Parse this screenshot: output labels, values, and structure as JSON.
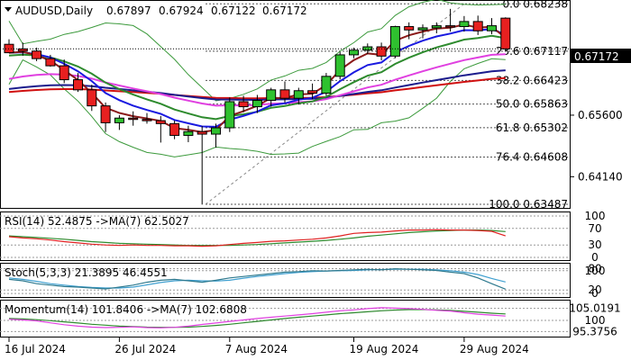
{
  "chart_data": {
    "type": "candlestick",
    "title": "AUDUSD,Daily",
    "ohlc_header": [
      "0.67897",
      "0.67924",
      "0.67122",
      "0.67172"
    ],
    "current_price": "0.67172",
    "colors": {
      "bull": "#2fc12f",
      "bear": "#e82020",
      "ema_fast": "#1a1ae0",
      "ema_mid": "#8b1a1a",
      "ema_green": "#2e8b2e",
      "magenta": "#e040e0",
      "navy": "#1c1c8c",
      "red_ma": "#d01010",
      "bands": "#3c9a3c"
    },
    "y_axis": {
      "range": [
        0.6338,
        0.6833
      ],
      "tick_labels": [
        "0.65600",
        "0.64140"
      ],
      "tick_values": [
        0.656,
        0.6414
      ]
    },
    "x_axis": {
      "labels": [
        "16 Jul 2024",
        "26 Jul 2024",
        "7 Aug 2024",
        "19 Aug 2024",
        "29 Aug 2024"
      ],
      "label_indices": [
        0,
        8,
        16,
        25,
        33
      ]
    },
    "fibonacci": [
      {
        "level": "0.0",
        "price": "0.68238",
        "value": 0.68238
      },
      {
        "level": "23.6",
        "price": "0.67117",
        "value": 0.67117
      },
      {
        "level": "38.2",
        "price": "0.66423",
        "value": 0.66423
      },
      {
        "level": "50.0",
        "price": "0.65863",
        "value": 0.65863
      },
      {
        "level": "61.8",
        "price": "0.65302",
        "value": 0.65302
      },
      {
        "level": "76.4",
        "price": "0.64608",
        "value": 0.64608
      },
      {
        "level": "100.0",
        "price": "0.63487",
        "value": 0.63487
      }
    ],
    "candles": [
      {
        "o": 0.6728,
        "h": 0.674,
        "l": 0.6711,
        "c": 0.6708
      },
      {
        "o": 0.6717,
        "h": 0.6732,
        "l": 0.6701,
        "c": 0.6712
      },
      {
        "o": 0.6712,
        "h": 0.672,
        "l": 0.6688,
        "c": 0.6694
      },
      {
        "o": 0.6694,
        "h": 0.6703,
        "l": 0.6675,
        "c": 0.6677
      },
      {
        "o": 0.6677,
        "h": 0.6692,
        "l": 0.6636,
        "c": 0.6644
      },
      {
        "o": 0.6644,
        "h": 0.666,
        "l": 0.6615,
        "c": 0.662
      },
      {
        "o": 0.662,
        "h": 0.6632,
        "l": 0.657,
        "c": 0.6582
      },
      {
        "o": 0.6582,
        "h": 0.659,
        "l": 0.652,
        "c": 0.6542
      },
      {
        "o": 0.6542,
        "h": 0.656,
        "l": 0.6525,
        "c": 0.6553
      },
      {
        "o": 0.6553,
        "h": 0.6569,
        "l": 0.6535,
        "c": 0.655
      },
      {
        "o": 0.655,
        "h": 0.6565,
        "l": 0.654,
        "c": 0.6547
      },
      {
        "o": 0.6547,
        "h": 0.6558,
        "l": 0.6495,
        "c": 0.654
      },
      {
        "o": 0.654,
        "h": 0.6547,
        "l": 0.6503,
        "c": 0.6512
      },
      {
        "o": 0.6512,
        "h": 0.6535,
        "l": 0.6496,
        "c": 0.6521
      },
      {
        "o": 0.6521,
        "h": 0.6534,
        "l": 0.6348,
        "c": 0.6515
      },
      {
        "o": 0.6515,
        "h": 0.654,
        "l": 0.6483,
        "c": 0.653
      },
      {
        "o": 0.653,
        "h": 0.6602,
        "l": 0.652,
        "c": 0.6592
      },
      {
        "o": 0.6592,
        "h": 0.6606,
        "l": 0.6567,
        "c": 0.658
      },
      {
        "o": 0.658,
        "h": 0.6608,
        "l": 0.6565,
        "c": 0.6595
      },
      {
        "o": 0.6595,
        "h": 0.6625,
        "l": 0.658,
        "c": 0.662
      },
      {
        "o": 0.662,
        "h": 0.664,
        "l": 0.659,
        "c": 0.66
      },
      {
        "o": 0.66,
        "h": 0.6625,
        "l": 0.6585,
        "c": 0.6618
      },
      {
        "o": 0.6618,
        "h": 0.6635,
        "l": 0.6598,
        "c": 0.6612
      },
      {
        "o": 0.6612,
        "h": 0.666,
        "l": 0.6606,
        "c": 0.6652
      },
      {
        "o": 0.6652,
        "h": 0.671,
        "l": 0.6645,
        "c": 0.6703
      },
      {
        "o": 0.6703,
        "h": 0.672,
        "l": 0.6695,
        "c": 0.6714
      },
      {
        "o": 0.6714,
        "h": 0.673,
        "l": 0.6705,
        "c": 0.6722
      },
      {
        "o": 0.6722,
        "h": 0.6732,
        "l": 0.669,
        "c": 0.67
      },
      {
        "o": 0.67,
        "h": 0.6772,
        "l": 0.6695,
        "c": 0.677
      },
      {
        "o": 0.677,
        "h": 0.678,
        "l": 0.674,
        "c": 0.6762
      },
      {
        "o": 0.6762,
        "h": 0.6775,
        "l": 0.6742,
        "c": 0.6767
      },
      {
        "o": 0.6767,
        "h": 0.678,
        "l": 0.6754,
        "c": 0.6772
      },
      {
        "o": 0.6772,
        "h": 0.6812,
        "l": 0.6758,
        "c": 0.677
      },
      {
        "o": 0.677,
        "h": 0.6795,
        "l": 0.6758,
        "c": 0.6782
      },
      {
        "o": 0.6782,
        "h": 0.6796,
        "l": 0.675,
        "c": 0.676
      },
      {
        "o": 0.676,
        "h": 0.679,
        "l": 0.6752,
        "c": 0.6772
      },
      {
        "o": 0.679,
        "h": 0.6792,
        "l": 0.6712,
        "c": 0.6717
      }
    ],
    "panels": {
      "rsi": {
        "label": "RSI(14) 52.4875  ->MA(7) 62.5027",
        "range": [
          0,
          100
        ],
        "levels": [
          "100",
          "70",
          "30",
          "0"
        ],
        "values": [
          50,
          47,
          45,
          42,
          38,
          35,
          32,
          30,
          29,
          30,
          29,
          29,
          28,
          28,
          27,
          28,
          31,
          34,
          36,
          39,
          40,
          42,
          44,
          47,
          52,
          58,
          60,
          61,
          64,
          66,
          66,
          67,
          66,
          66,
          65,
          63,
          52
        ],
        "ma": [
          52,
          50,
          48,
          46,
          44,
          41,
          38,
          36,
          34,
          33,
          32,
          31,
          30,
          29,
          29,
          29,
          29,
          30,
          31,
          33,
          35,
          37,
          39,
          41,
          44,
          47,
          51,
          54,
          57,
          60,
          62,
          64,
          65,
          66,
          66,
          65,
          62.5
        ]
      },
      "stoch": {
        "label": "Stoch(5,3,3) 21.3895 46.4551",
        "range": [
          0,
          100
        ],
        "levels": [
          "80",
          "100",
          "20",
          "0"
        ],
        "k": [
          55,
          50,
          40,
          35,
          30,
          28,
          25,
          22,
          28,
          35,
          45,
          52,
          55,
          50,
          45,
          52,
          60,
          65,
          70,
          75,
          80,
          82,
          85,
          84,
          86,
          88,
          90,
          88,
          92,
          90,
          88,
          86,
          80,
          75,
          60,
          40,
          21
        ],
        "d": [
          60,
          55,
          48,
          40,
          35,
          30,
          27,
          25,
          25,
          28,
          36,
          44,
          50,
          52,
          50,
          49,
          52,
          59,
          65,
          70,
          75,
          79,
          82,
          84,
          85,
          86,
          88,
          89,
          90,
          90,
          90,
          88,
          85,
          80,
          72,
          58,
          46
        ]
      },
      "momentum": {
        "label": "Momentum(14) 101.8406  ->MA(7) 102.6808",
        "range": [
          94.0,
          107.5
        ],
        "levels": [
          "105.0191",
          "100",
          "95.3756"
        ],
        "level_values": [
          105.0191,
          100,
          95.3756
        ],
        "values": [
          100.5,
          100.2,
          99.8,
          99.0,
          98.2,
          97.6,
          97.2,
          97.0,
          97.1,
          97.3,
          97.0,
          96.9,
          97.1,
          97.6,
          98.3,
          98.9,
          99.6,
          100.2,
          100.8,
          101.3,
          101.8,
          102.3,
          102.8,
          103.4,
          104.0,
          104.4,
          104.9,
          105.3,
          105.1,
          104.9,
          104.6,
          104.2,
          103.9,
          103.2,
          102.6,
          102.2,
          101.8
        ],
        "ma": [
          100.8,
          100.6,
          100.3,
          99.9,
          99.4,
          98.9,
          98.4,
          98.0,
          97.6,
          97.4,
          97.2,
          97.1,
          97.1,
          97.2,
          97.5,
          97.9,
          98.4,
          99.0,
          99.6,
          100.2,
          100.8,
          101.3,
          101.8,
          102.3,
          102.8,
          103.2,
          103.6,
          104.0,
          104.3,
          104.5,
          104.5,
          104.4,
          104.2,
          103.8,
          103.4,
          103.0,
          102.7
        ]
      }
    }
  }
}
